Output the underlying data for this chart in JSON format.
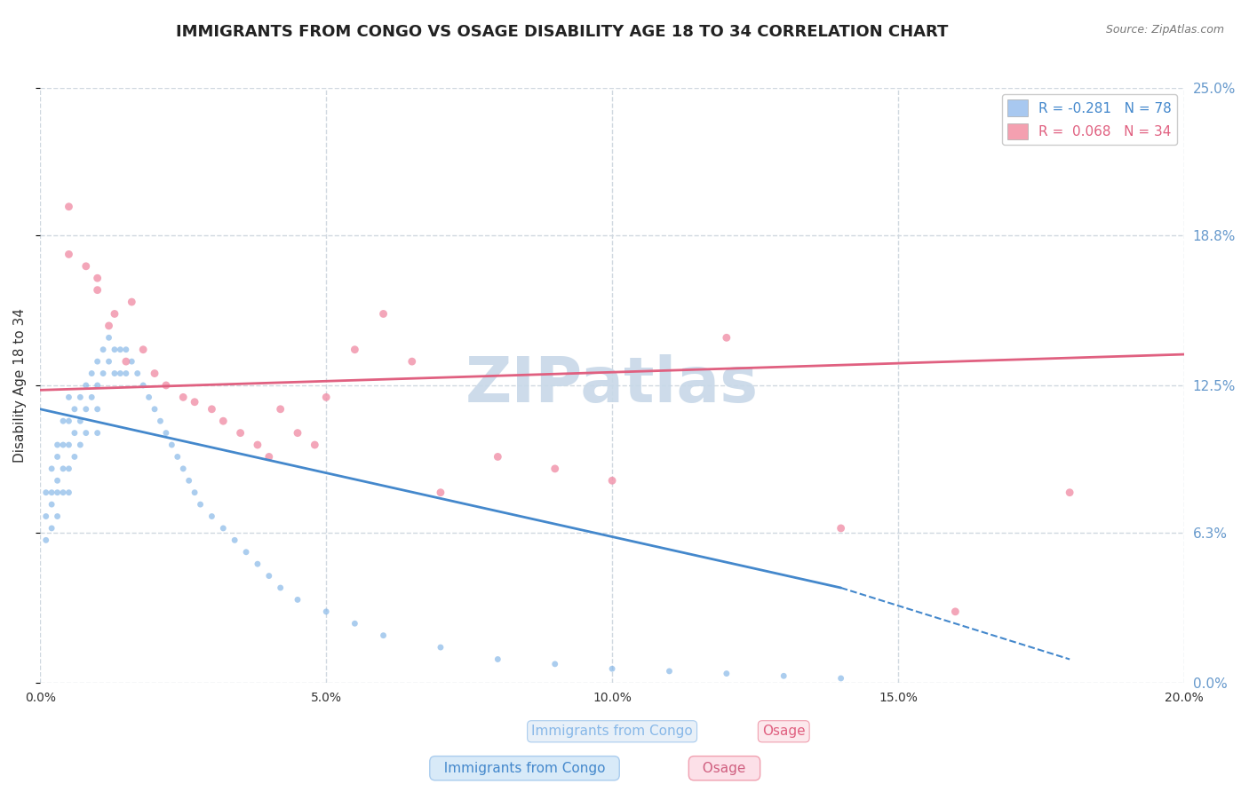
{
  "title": "IMMIGRANTS FROM CONGO VS OSAGE DISABILITY AGE 18 TO 34 CORRELATION CHART",
  "source_text": "Source: ZipAtlas.com",
  "xlabel": "",
  "ylabel": "Disability Age 18 to 34",
  "xlim": [
    0.0,
    0.2
  ],
  "ylim": [
    0.0,
    0.25
  ],
  "xticks": [
    0.0,
    0.05,
    0.1,
    0.15,
    0.2
  ],
  "xtick_labels": [
    "0.0%",
    "5.0%",
    "10.0%",
    "15.0%",
    "20.0%"
  ],
  "ytick_vals": [
    0.0,
    0.063,
    0.125,
    0.188,
    0.25
  ],
  "ytick_labels": [
    "0.0%",
    "6.3%",
    "12.5%",
    "18.8%",
    "25.0%"
  ],
  "legend_entries": [
    {
      "label": "R = -0.281   N = 78",
      "color": "#a8c8f0"
    },
    {
      "label": "R =  0.068   N = 34",
      "color": "#f4a0b0"
    }
  ],
  "series_congo": {
    "color": "#88b8e8",
    "marker": "o",
    "markersize": 7,
    "alpha": 0.7,
    "R": -0.281,
    "N": 78,
    "trend_color": "#4488cc",
    "trend_x": [
      0.0,
      0.14
    ],
    "trend_y": [
      0.115,
      0.04
    ]
  },
  "series_osage": {
    "color": "#f090a8",
    "marker": "o",
    "markersize": 9,
    "alpha": 0.8,
    "R": 0.068,
    "N": 34,
    "trend_color": "#e06080",
    "trend_x": [
      0.0,
      0.2
    ],
    "trend_y": [
      0.123,
      0.138
    ]
  },
  "watermark": "ZIPatlas",
  "watermark_color": "#c8d8e8",
  "watermark_fontsize": 52,
  "background_color": "#ffffff",
  "grid_color": "#d0d8e0",
  "title_fontsize": 13,
  "axis_label_fontsize": 11,
  "tick_fontsize": 10,
  "right_tick_color": "#6699cc",
  "congo_points_x": [
    0.001,
    0.001,
    0.001,
    0.002,
    0.002,
    0.002,
    0.002,
    0.003,
    0.003,
    0.003,
    0.003,
    0.003,
    0.004,
    0.004,
    0.004,
    0.004,
    0.005,
    0.005,
    0.005,
    0.005,
    0.005,
    0.006,
    0.006,
    0.006,
    0.007,
    0.007,
    0.007,
    0.008,
    0.008,
    0.008,
    0.009,
    0.009,
    0.01,
    0.01,
    0.01,
    0.01,
    0.011,
    0.011,
    0.012,
    0.012,
    0.013,
    0.013,
    0.014,
    0.014,
    0.015,
    0.015,
    0.016,
    0.017,
    0.018,
    0.019,
    0.02,
    0.021,
    0.022,
    0.023,
    0.024,
    0.025,
    0.026,
    0.027,
    0.028,
    0.03,
    0.032,
    0.034,
    0.036,
    0.038,
    0.04,
    0.042,
    0.045,
    0.05,
    0.055,
    0.06,
    0.07,
    0.08,
    0.09,
    0.1,
    0.11,
    0.12,
    0.13,
    0.14
  ],
  "congo_points_y": [
    0.08,
    0.07,
    0.06,
    0.09,
    0.08,
    0.075,
    0.065,
    0.1,
    0.095,
    0.085,
    0.08,
    0.07,
    0.11,
    0.1,
    0.09,
    0.08,
    0.12,
    0.11,
    0.1,
    0.09,
    0.08,
    0.115,
    0.105,
    0.095,
    0.12,
    0.11,
    0.1,
    0.125,
    0.115,
    0.105,
    0.13,
    0.12,
    0.135,
    0.125,
    0.115,
    0.105,
    0.14,
    0.13,
    0.145,
    0.135,
    0.14,
    0.13,
    0.14,
    0.13,
    0.14,
    0.13,
    0.135,
    0.13,
    0.125,
    0.12,
    0.115,
    0.11,
    0.105,
    0.1,
    0.095,
    0.09,
    0.085,
    0.08,
    0.075,
    0.07,
    0.065,
    0.06,
    0.055,
    0.05,
    0.045,
    0.04,
    0.035,
    0.03,
    0.025,
    0.02,
    0.015,
    0.01,
    0.008,
    0.006,
    0.005,
    0.004,
    0.003,
    0.002
  ],
  "osage_points_x": [
    0.005,
    0.005,
    0.008,
    0.01,
    0.01,
    0.012,
    0.013,
    0.015,
    0.016,
    0.018,
    0.02,
    0.022,
    0.025,
    0.027,
    0.03,
    0.032,
    0.035,
    0.038,
    0.04,
    0.042,
    0.045,
    0.048,
    0.05,
    0.055,
    0.06,
    0.065,
    0.07,
    0.08,
    0.09,
    0.1,
    0.12,
    0.14,
    0.16,
    0.18
  ],
  "osage_points_y": [
    0.2,
    0.18,
    0.175,
    0.17,
    0.165,
    0.15,
    0.155,
    0.135,
    0.16,
    0.14,
    0.13,
    0.125,
    0.12,
    0.118,
    0.115,
    0.11,
    0.105,
    0.1,
    0.095,
    0.115,
    0.105,
    0.1,
    0.12,
    0.14,
    0.155,
    0.135,
    0.08,
    0.095,
    0.09,
    0.085,
    0.145,
    0.065,
    0.03,
    0.08
  ]
}
